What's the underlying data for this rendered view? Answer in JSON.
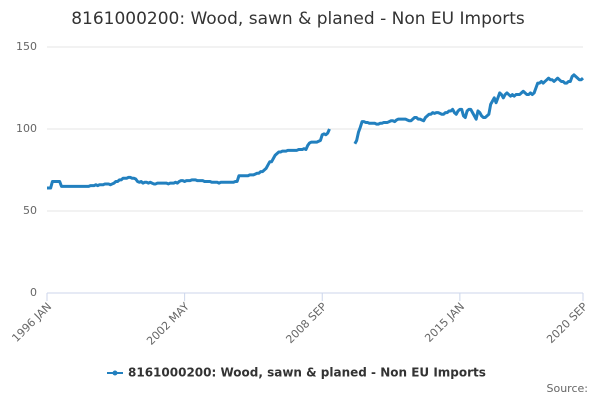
{
  "chart_data": {
    "type": "line",
    "title": "8161000200: Wood, sawn & planed - Non EU Imports",
    "source": "Source:",
    "categories": [
      "1996 JAN",
      null,
      null,
      null,
      null,
      null,
      null,
      null,
      null,
      null,
      null,
      null,
      null,
      null,
      null,
      null,
      null,
      null,
      null,
      null,
      null,
      null,
      null,
      null,
      null,
      null,
      null,
      null,
      null,
      null,
      null,
      null,
      null,
      null,
      null,
      null,
      null,
      null,
      null,
      null,
      null,
      null,
      null,
      null,
      null,
      null,
      null,
      null,
      null,
      null,
      null,
      null,
      null,
      null,
      null,
      null,
      null,
      null,
      null,
      null,
      null,
      null,
      null,
      null,
      null,
      null,
      null,
      null,
      null,
      null,
      null,
      null,
      null,
      null,
      null,
      null,
      "2002 MAY",
      null,
      null,
      null,
      null,
      null,
      null,
      null,
      null,
      null,
      null,
      null,
      null,
      null,
      null,
      null,
      null,
      null,
      null,
      null,
      null,
      null,
      null,
      null,
      null,
      null,
      null,
      null,
      null,
      null,
      null,
      null,
      null,
      null,
      null,
      null,
      null,
      null,
      null,
      null,
      null,
      null,
      null,
      null,
      null,
      null,
      null,
      null,
      null,
      null,
      null,
      null,
      null,
      null,
      null,
      null,
      null,
      null,
      null,
      null,
      null,
      null,
      null,
      null,
      null,
      null,
      null,
      null,
      null,
      null,
      null,
      null,
      null,
      null,
      null,
      null,
      "2008 SEP",
      null,
      null,
      null,
      null,
      null,
      null,
      null,
      null,
      null,
      null,
      null,
      null,
      null,
      null,
      null,
      null,
      null,
      null,
      null,
      null,
      null,
      null,
      null,
      null,
      null,
      null,
      null,
      null,
      null,
      null,
      null,
      null,
      null,
      null,
      null,
      null,
      null,
      null,
      null,
      null,
      null,
      null,
      null,
      null,
      null,
      null,
      null,
      null,
      null,
      null,
      null,
      null,
      null,
      null,
      null,
      null,
      null,
      null,
      null,
      null,
      null,
      null,
      null,
      null,
      null,
      null,
      null,
      null,
      null,
      null,
      null,
      null,
      null,
      null,
      null,
      "2015 JAN",
      null,
      null,
      null,
      null,
      null,
      null,
      null,
      null,
      null,
      null,
      null,
      null,
      null,
      null,
      null,
      null,
      null,
      null,
      null,
      null,
      null,
      null,
      null,
      null,
      null,
      null,
      null,
      null,
      null,
      null,
      null,
      null,
      null,
      null,
      null,
      null,
      null,
      null,
      null,
      null,
      null,
      null,
      null,
      null,
      null,
      null,
      null,
      null,
      null,
      null,
      null,
      null,
      null,
      null,
      null,
      null,
      null,
      null,
      null,
      null,
      null,
      null,
      null,
      null,
      null,
      null,
      null,
      "2020 SEP"
    ],
    "series": [
      {
        "name": "8161000200: Wood, sawn & planed - Non EU Imports",
        "color": "#2280bf",
        "values": [
          64,
          64,
          64,
          68,
          68,
          68,
          68,
          68,
          65,
          65,
          65,
          65,
          65,
          65,
          65,
          65,
          65,
          65,
          65,
          65,
          65,
          65,
          65,
          65,
          65.5,
          65.5,
          65.5,
          66,
          65.5,
          66,
          66,
          66,
          66.5,
          66.5,
          66.5,
          66,
          66.5,
          67,
          68,
          68,
          69,
          69,
          70,
          70,
          70,
          70.5,
          70.5,
          70,
          70,
          69.5,
          68,
          67.5,
          68,
          67,
          67.5,
          67.5,
          67,
          67.5,
          67,
          66.5,
          66.5,
          67,
          67,
          67,
          67,
          67,
          67,
          66.5,
          67,
          67,
          67,
          67.5,
          67,
          68,
          68.5,
          68.5,
          68,
          68.5,
          68.5,
          68.5,
          69,
          69,
          69,
          68.5,
          68.5,
          68.5,
          68.5,
          68,
          68,
          68,
          68,
          67.5,
          67.5,
          67.5,
          67.5,
          67,
          67.5,
          67.5,
          67.5,
          67.5,
          67.5,
          67.5,
          67.5,
          67.5,
          68,
          68,
          71.5,
          71.5,
          71.5,
          71.5,
          71.5,
          71.5,
          72,
          72,
          72,
          72.5,
          73,
          73,
          74,
          74,
          75,
          76,
          78,
          80,
          80,
          82,
          84,
          85,
          86,
          86,
          86.5,
          86.5,
          86.5,
          87,
          87,
          87,
          87,
          87,
          87,
          87.5,
          87.5,
          87.5,
          88,
          87.5,
          90,
          91.5,
          92,
          92,
          92,
          92,
          92.5,
          93,
          96.5,
          97,
          96.5,
          97.5,
          100,
          null,
          null,
          null,
          null,
          null,
          null,
          null,
          null,
          null,
          null,
          null,
          null,
          null,
          91,
          93,
          98,
          101,
          104.5,
          104.5,
          104,
          104,
          103.5,
          103.5,
          103.5,
          103.5,
          103,
          103,
          103.5,
          103.5,
          104,
          104,
          104,
          104.5,
          105,
          105,
          104.5,
          105.5,
          106,
          106,
          106,
          106,
          106,
          105.5,
          105,
          105,
          106,
          107,
          107,
          106,
          106,
          105.5,
          105,
          107,
          108,
          109,
          109,
          110,
          109.5,
          110,
          110,
          109.5,
          109,
          109,
          110,
          110,
          111,
          111,
          112,
          110,
          109,
          111,
          112,
          112,
          108,
          107,
          111,
          112,
          112,
          110,
          108,
          106,
          111,
          110,
          108,
          107,
          107,
          108,
          109,
          115,
          117,
          119,
          116,
          119,
          122,
          121,
          119,
          121,
          122,
          121,
          120,
          121,
          120,
          121,
          121,
          121,
          122,
          123,
          122,
          121,
          121,
          122,
          121,
          122,
          125,
          128,
          128,
          129,
          128,
          129,
          130,
          131,
          130,
          130,
          129,
          130,
          131,
          130,
          129,
          129,
          128,
          128,
          129,
          129,
          132,
          133,
          132,
          131,
          130,
          130,
          131
        ]
      }
    ],
    "ylim": [
      0,
      150
    ],
    "yticks": [
      0,
      50,
      100,
      150
    ],
    "grid": true
  }
}
